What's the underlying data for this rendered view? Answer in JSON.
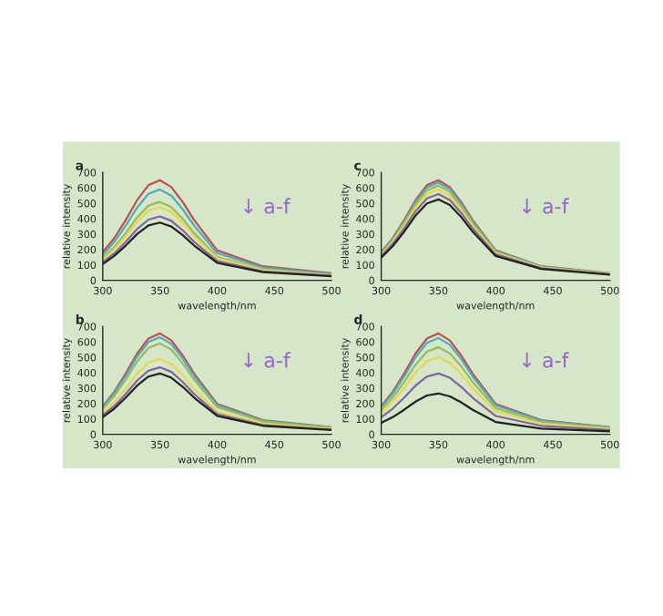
{
  "chart_data": [
    {
      "type": "line",
      "title": "a",
      "xlabel": "wavelength/nm",
      "ylabel": "relative intensity",
      "annotations": [
        "↓ a-f"
      ],
      "x": [
        300,
        310,
        320,
        330,
        340,
        350,
        360,
        370,
        380,
        400,
        440,
        500
      ],
      "xlim": [
        300,
        500
      ],
      "xticks": [
        300,
        350,
        400,
        450,
        500
      ],
      "ylim": [
        0,
        700
      ],
      "yticks": [
        0,
        100,
        200,
        300,
        400,
        500,
        600,
        700
      ],
      "grid": false,
      "legend": false,
      "series": [
        {
          "color": "#c0504d",
          "values": [
            182,
            273,
            390,
            520,
            618,
            650,
            605,
            507,
            390,
            195,
            91,
            46
          ]
        },
        {
          "color": "#4bacc6",
          "values": [
            165,
            248,
            354,
            472,
            561,
            590,
            549,
            460,
            354,
            177,
            83,
            41
          ]
        },
        {
          "color": "#9bbb59",
          "values": [
            143,
            214,
            306,
            408,
            485,
            510,
            474,
            398,
            306,
            153,
            71,
            36
          ]
        },
        {
          "color": "#e6d84a",
          "values": [
            133,
            200,
            285,
            380,
            451,
            475,
            442,
            371,
            285,
            143,
            67,
            33
          ]
        },
        {
          "color": "#8064a2",
          "values": [
            116,
            174,
            249,
            332,
            394,
            415,
            386,
            324,
            249,
            125,
            58,
            29
          ]
        },
        {
          "color": "#222222",
          "values": [
            105,
            158,
            225,
            300,
            356,
            375,
            349,
            293,
            225,
            113,
            53,
            26
          ]
        }
      ]
    },
    {
      "type": "line",
      "title": "c",
      "xlabel": "wavelength/nm",
      "ylabel": "relative intensity",
      "annotations": [
        "↓ a-f"
      ],
      "x": [
        300,
        310,
        320,
        330,
        340,
        350,
        360,
        370,
        380,
        400,
        440,
        500
      ],
      "xlim": [
        300,
        500
      ],
      "xticks": [
        300,
        350,
        400,
        450,
        500
      ],
      "ylim": [
        0,
        700
      ],
      "yticks": [
        0,
        100,
        200,
        300,
        400,
        500,
        600,
        700
      ],
      "grid": false,
      "legend": false,
      "series": [
        {
          "color": "#c0504d",
          "values": [
            182,
            273,
            390,
            520,
            618,
            650,
            605,
            507,
            390,
            195,
            91,
            46
          ]
        },
        {
          "color": "#4bacc6",
          "values": [
            178,
            267,
            381,
            508,
            603,
            635,
            591,
            495,
            381,
            191,
            89,
            44
          ]
        },
        {
          "color": "#9bbb59",
          "values": [
            172,
            258,
            369,
            492,
            584,
            615,
            572,
            480,
            369,
            185,
            86,
            43
          ]
        },
        {
          "color": "#e6d84a",
          "values": [
            165,
            248,
            354,
            472,
            561,
            590,
            549,
            460,
            354,
            177,
            83,
            41
          ]
        },
        {
          "color": "#8064a2",
          "values": [
            157,
            235,
            336,
            448,
            532,
            560,
            521,
            437,
            336,
            168,
            78,
            39
          ]
        },
        {
          "color": "#222222",
          "values": [
            147,
            221,
            315,
            420,
            499,
            525,
            488,
            410,
            315,
            158,
            74,
            37
          ]
        }
      ]
    },
    {
      "type": "line",
      "title": "b",
      "xlabel": "wavelength/nm",
      "ylabel": "relative intensity",
      "annotations": [
        "↓ a-f"
      ],
      "x": [
        300,
        310,
        320,
        330,
        340,
        350,
        360,
        370,
        380,
        400,
        440,
        500
      ],
      "xlim": [
        300,
        500
      ],
      "xticks": [
        300,
        350,
        400,
        450,
        500
      ],
      "ylim": [
        0,
        700
      ],
      "yticks": [
        0,
        100,
        200,
        300,
        400,
        500,
        600,
        700
      ],
      "grid": false,
      "legend": false,
      "series": [
        {
          "color": "#c0504d",
          "values": [
            183,
            275,
            393,
            524,
            622,
            655,
            609,
            511,
            393,
            197,
            92,
            46
          ]
        },
        {
          "color": "#4bacc6",
          "values": [
            176,
            265,
            378,
            504,
            599,
            630,
            586,
            491,
            378,
            189,
            88,
            44
          ]
        },
        {
          "color": "#9bbb59",
          "values": [
            165,
            248,
            354,
            472,
            561,
            590,
            549,
            460,
            354,
            177,
            83,
            41
          ]
        },
        {
          "color": "#e6d84a",
          "values": [
            137,
            206,
            294,
            392,
            466,
            490,
            456,
            382,
            294,
            147,
            69,
            34
          ]
        },
        {
          "color": "#8064a2",
          "values": [
            122,
            183,
            261,
            348,
            413,
            435,
            405,
            339,
            261,
            131,
            61,
            30
          ]
        },
        {
          "color": "#222222",
          "values": [
            111,
            166,
            237,
            316,
            375,
            395,
            367,
            308,
            237,
            119,
            55,
            28
          ]
        }
      ]
    },
    {
      "type": "line",
      "title": "d",
      "xlabel": "wavelength/nm",
      "ylabel": "relative intensity",
      "annotations": [
        "↓ a-f"
      ],
      "x": [
        300,
        310,
        320,
        330,
        340,
        350,
        360,
        370,
        380,
        400,
        440,
        500
      ],
      "xlim": [
        300,
        500
      ],
      "xticks": [
        300,
        350,
        400,
        450,
        500
      ],
      "ylim": [
        0,
        700
      ],
      "yticks": [
        0,
        100,
        200,
        300,
        400,
        500,
        600,
        700
      ],
      "grid": false,
      "legend": false,
      "series": [
        {
          "color": "#c0504d",
          "values": [
            183,
            275,
            393,
            524,
            622,
            655,
            609,
            511,
            393,
            197,
            92,
            46
          ]
        },
        {
          "color": "#4bacc6",
          "values": [
            175,
            263,
            375,
            500,
            594,
            625,
            581,
            488,
            375,
            188,
            88,
            44
          ]
        },
        {
          "color": "#9bbb59",
          "values": [
            158,
            237,
            339,
            452,
            537,
            565,
            525,
            441,
            339,
            170,
            79,
            40
          ]
        },
        {
          "color": "#e6d84a",
          "values": [
            140,
            210,
            300,
            400,
            475,
            500,
            465,
            390,
            300,
            150,
            70,
            35
          ]
        },
        {
          "color": "#8064a2",
          "values": [
            111,
            166,
            237,
            316,
            375,
            395,
            367,
            308,
            237,
            119,
            55,
            28
          ]
        },
        {
          "color": "#222222",
          "values": [
            74,
            111,
            159,
            212,
            252,
            265,
            246,
            207,
            159,
            80,
            37,
            19
          ]
        }
      ]
    }
  ]
}
